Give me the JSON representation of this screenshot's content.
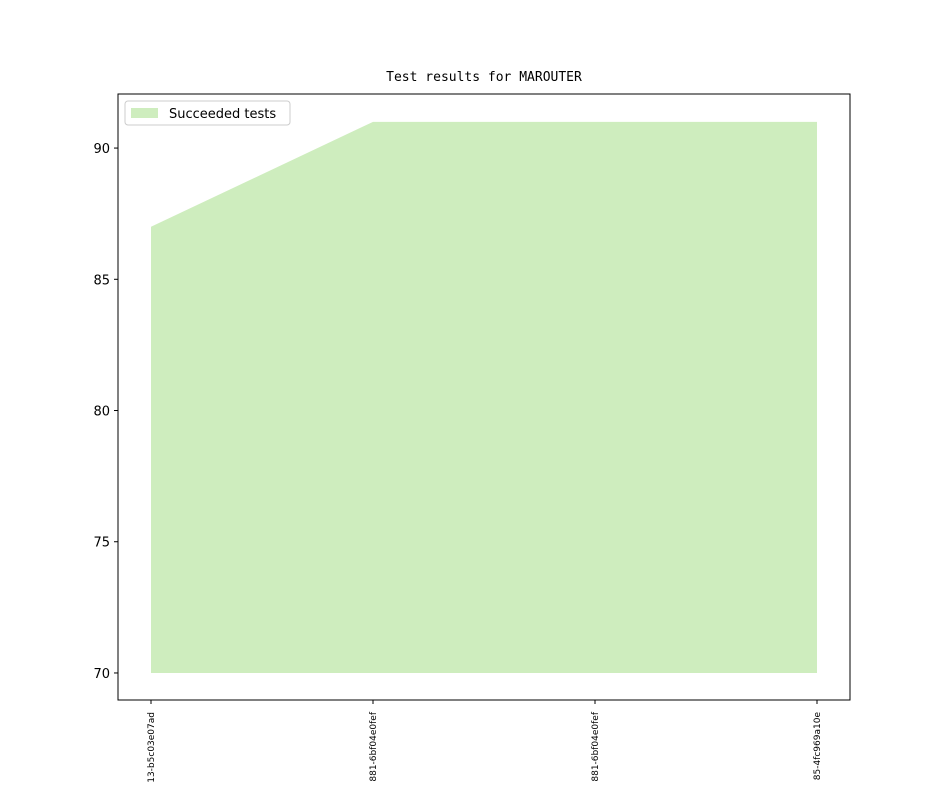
{
  "chart_data": {
    "type": "area",
    "title": "Test results for MAROUTER",
    "categories": [
      "13-b5c03e07ad",
      "881-6bf04e0fef",
      "881-6bf04e0fef",
      "85-4fc969a10e"
    ],
    "series": [
      {
        "name": "Succeeded tests",
        "color": "#ceedbe",
        "values": [
          87,
          91,
          91,
          91
        ]
      }
    ],
    "fill_base": 70,
    "ylim": [
      68.97,
      92.06
    ],
    "yticks": [
      70,
      75,
      80,
      85,
      90
    ],
    "legend": "upper left",
    "grid": false
  }
}
